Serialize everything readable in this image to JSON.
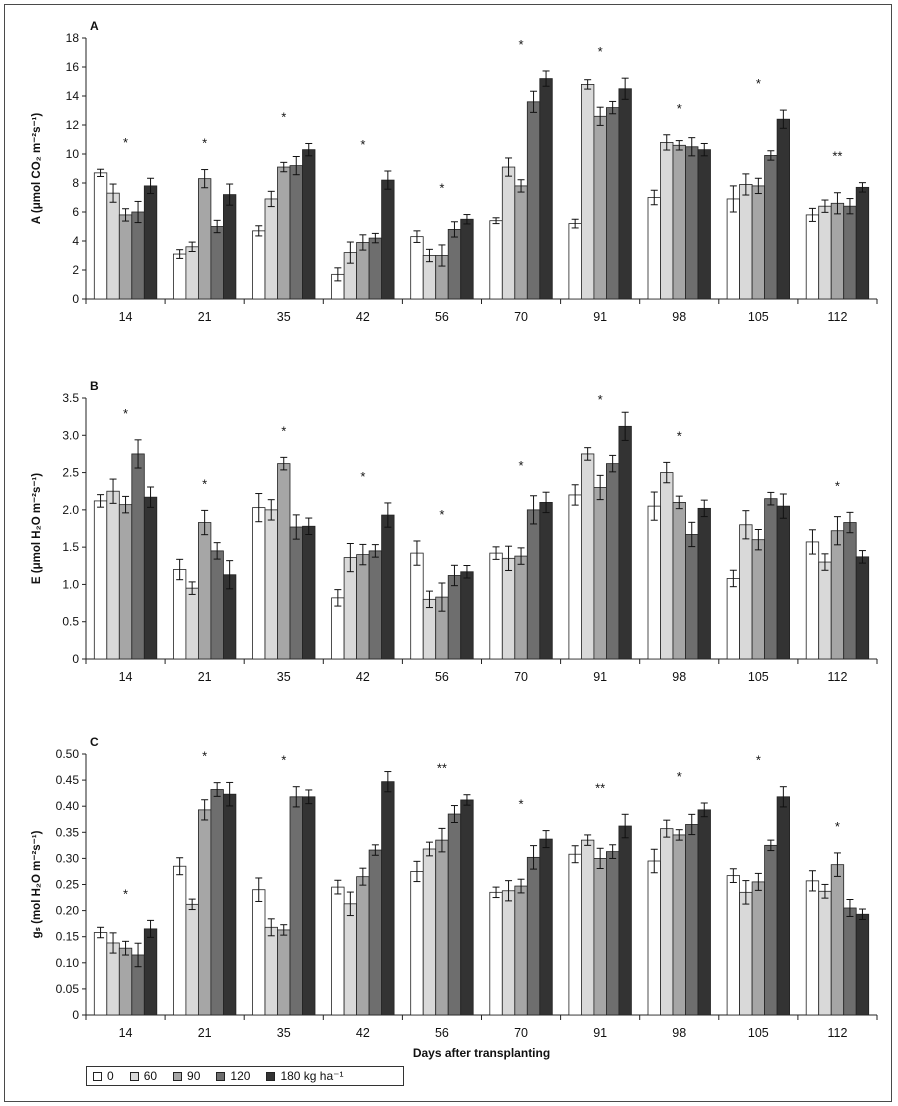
{
  "chart_data": [
    {
      "type": "bar",
      "panel_label": "A",
      "ylabel": "A (μmol CO₂ m⁻²s⁻¹)",
      "ylim": [
        0,
        18
      ],
      "yticks": [
        0,
        2,
        4,
        6,
        8,
        10,
        12,
        14,
        16,
        18
      ],
      "ytick_labels": [
        "0",
        "2",
        "4",
        "6",
        "8",
        "10",
        "12",
        "14",
        "16",
        "18"
      ],
      "categories": [
        "14",
        "21",
        "35",
        "42",
        "56",
        "70",
        "91",
        "98",
        "105",
        "112"
      ],
      "significance": [
        "*",
        "*",
        "*",
        "*",
        "*",
        "*",
        "*",
        "*",
        "*",
        "**"
      ],
      "series": [
        {
          "name": "0",
          "values": [
            8.7,
            3.1,
            4.7,
            1.7,
            4.3,
            5.4,
            5.2,
            7.0,
            6.9,
            5.8
          ],
          "errors": [
            0.25,
            0.3,
            0.35,
            0.45,
            0.4,
            0.2,
            0.3,
            0.5,
            0.9,
            0.45
          ]
        },
        {
          "name": "60",
          "values": [
            7.3,
            3.6,
            6.9,
            3.2,
            3.0,
            9.1,
            14.8,
            10.8,
            7.9,
            6.4
          ]
        },
        {
          "name": "90",
          "values": [
            5.8,
            8.3,
            9.1,
            3.9,
            3.0,
            7.8,
            12.6,
            10.6,
            7.8,
            6.6
          ]
        },
        {
          "name": "120",
          "values": [
            6.0,
            5.0,
            9.2,
            4.2,
            4.8,
            13.6,
            13.2,
            10.5,
            9.9,
            6.4
          ]
        },
        {
          "name": "180 kg ha⁻¹",
          "values": [
            7.8,
            7.2,
            10.3,
            8.2,
            5.5,
            15.2,
            14.5,
            10.3,
            12.4,
            7.7
          ]
        }
      ]
    },
    {
      "type": "bar",
      "panel_label": "B",
      "ylabel": "E (μmol H₂O m⁻²s⁻¹)",
      "ylim": [
        0,
        3.5
      ],
      "yticks": [
        0,
        0.5,
        1.0,
        1.5,
        2.0,
        2.5,
        3.0,
        3.5
      ],
      "ytick_labels": [
        "0",
        "0.5",
        "1.0",
        "1.5",
        "2.0",
        "2.5",
        "3.0",
        "3.5"
      ],
      "categories": [
        "14",
        "21",
        "35",
        "42",
        "56",
        "70",
        "91",
        "98",
        "105",
        "112"
      ],
      "significance": [
        "*",
        "*",
        "*",
        "*",
        "*",
        "*",
        "*",
        "*",
        "",
        "*"
      ],
      "series": [
        {
          "name": "0",
          "values": [
            2.12,
            1.2,
            2.03,
            0.82,
            1.42,
            1.42,
            2.2,
            2.05,
            1.08,
            1.57
          ]
        },
        {
          "name": "60",
          "values": [
            2.25,
            0.95,
            2.0,
            1.36,
            0.8,
            1.35,
            2.75,
            2.5,
            1.8,
            1.3
          ]
        },
        {
          "name": "90",
          "values": [
            2.07,
            1.83,
            2.62,
            1.4,
            0.83,
            1.38,
            2.3,
            2.1,
            1.6,
            1.72
          ]
        },
        {
          "name": "120",
          "values": [
            2.75,
            1.45,
            1.77,
            1.45,
            1.12,
            2.0,
            2.62,
            1.67,
            2.15,
            1.83
          ]
        },
        {
          "name": "180 kg ha⁻¹",
          "values": [
            2.17,
            1.13,
            1.78,
            1.93,
            1.17,
            2.1,
            3.12,
            2.02,
            2.05,
            1.37
          ]
        }
      ]
    },
    {
      "type": "bar",
      "panel_label": "C",
      "ylabel": "gₛ (mol H₂O m⁻²s⁻¹)",
      "xlabel": "Days after transplanting",
      "ylim": [
        0,
        0.5
      ],
      "yticks": [
        0,
        0.05,
        0.1,
        0.15,
        0.2,
        0.25,
        0.3,
        0.35,
        0.4,
        0.45,
        0.5
      ],
      "ytick_labels": [
        "0",
        "0.05",
        "0.10",
        "0.15",
        "0.20",
        "0.25",
        "0.30",
        "0.35",
        "0.40",
        "0.45",
        "0.50"
      ],
      "categories": [
        "14",
        "21",
        "35",
        "42",
        "56",
        "70",
        "91",
        "98",
        "105",
        "112"
      ],
      "significance": [
        "*",
        "*",
        "*",
        "",
        "**",
        "*",
        "**",
        "*",
        "*",
        "*"
      ],
      "series": [
        {
          "name": "0",
          "values": [
            0.158,
            0.285,
            0.24,
            0.245,
            0.275,
            0.235,
            0.308,
            0.295,
            0.267,
            0.257
          ]
        },
        {
          "name": "60",
          "values": [
            0.138,
            0.212,
            0.168,
            0.213,
            0.318,
            0.238,
            0.335,
            0.357,
            0.235,
            0.237
          ]
        },
        {
          "name": "90",
          "values": [
            0.128,
            0.393,
            0.163,
            0.265,
            0.335,
            0.247,
            0.3,
            0.345,
            0.255,
            0.288
          ]
        },
        {
          "name": "120",
          "values": [
            0.115,
            0.432,
            0.418,
            0.316,
            0.385,
            0.302,
            0.313,
            0.365,
            0.325,
            0.205
          ]
        },
        {
          "name": "180 kg ha⁻¹",
          "values": [
            0.165,
            0.423,
            0.418,
            0.447,
            0.412,
            0.337,
            0.362,
            0.393,
            0.418,
            0.193
          ]
        }
      ]
    }
  ],
  "legend": {
    "items": [
      "0",
      "60",
      "90",
      "120",
      "180 kg ha⁻¹"
    ],
    "colors": [
      "#ffffff",
      "#d9d9d9",
      "#a6a6a6",
      "#6e6e6e",
      "#333333"
    ]
  }
}
